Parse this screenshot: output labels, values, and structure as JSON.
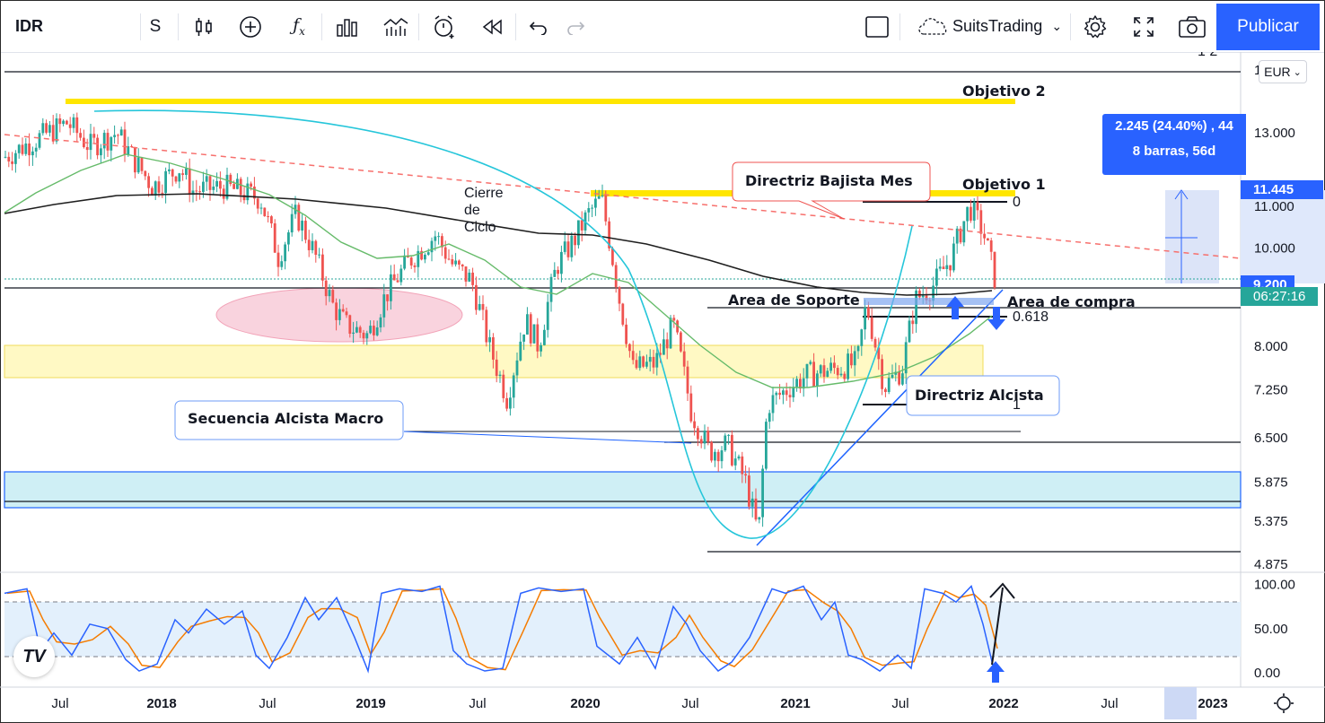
{
  "toolbar": {
    "symbol": "IDR",
    "interval": "S",
    "account": "SuitsTrading",
    "publish_label": "Publicar",
    "currency": "EUR"
  },
  "measure": {
    "line1": "2.245 (24.40%) , 44",
    "line2": "8 barras, 56d"
  },
  "price_tags": {
    "upper": "11.445",
    "current": "9.200",
    "countdown": "06:27:16",
    "upper_color": "#2962ff",
    "current_color": "#2962ff",
    "countdown_color": "#26a69a"
  },
  "chart_data": {
    "type": "candlestick",
    "symbol": "IDR",
    "y_ticks": [
      "13.000",
      "11.000",
      "10.000",
      "8.000",
      "7.250",
      "6.500",
      "5.875",
      "5.375",
      "4.875"
    ],
    "y_tick_values": [
      13.0,
      11.0,
      10.0,
      8.0,
      7.25,
      6.5,
      5.875,
      5.375,
      4.875
    ],
    "x_ticks": [
      "Jul",
      "2018",
      "Jul",
      "2019",
      "Jul",
      "2020",
      "Jul",
      "2021",
      "Jul",
      "2022",
      "Jul",
      "2023"
    ],
    "ylim": [
      4.6,
      15.5
    ],
    "log_scale": true,
    "annotations": {
      "objetivo2": "Objetivo 2",
      "objetivo1": "Objetivo 1",
      "directriz_bajista": "Directriz Bajista Mes",
      "cierre_ciclo": [
        "Cierre",
        "de",
        "Ciclo"
      ],
      "area_soporte": "Area de Soporte",
      "area_compra": "Area de compra",
      "directriz_alcista": "Directriz Alcista",
      "secuencia": "Secuencia Alcista Macro",
      "fib_0": "0",
      "fib_618": "0.618",
      "fib_1": "1",
      "top_right_partial": "1  2"
    },
    "oscillator": {
      "name": "Stochastic",
      "y_ticks": [
        "100.00",
        "50.00",
        "0.00"
      ],
      "ylim": [
        0,
        100
      ],
      "upper_band": 80,
      "lower_band": 20
    },
    "colors": {
      "up": "#26a69a",
      "down": "#ef5350",
      "ma_long": "#1e1e1e",
      "ma_mid": "#66bb6a",
      "arc": "#26c6da",
      "trend_down": "#f7706d",
      "target": "#ffe600",
      "stoch_k": "#2962ff",
      "stoch_d": "#f57c00"
    }
  }
}
